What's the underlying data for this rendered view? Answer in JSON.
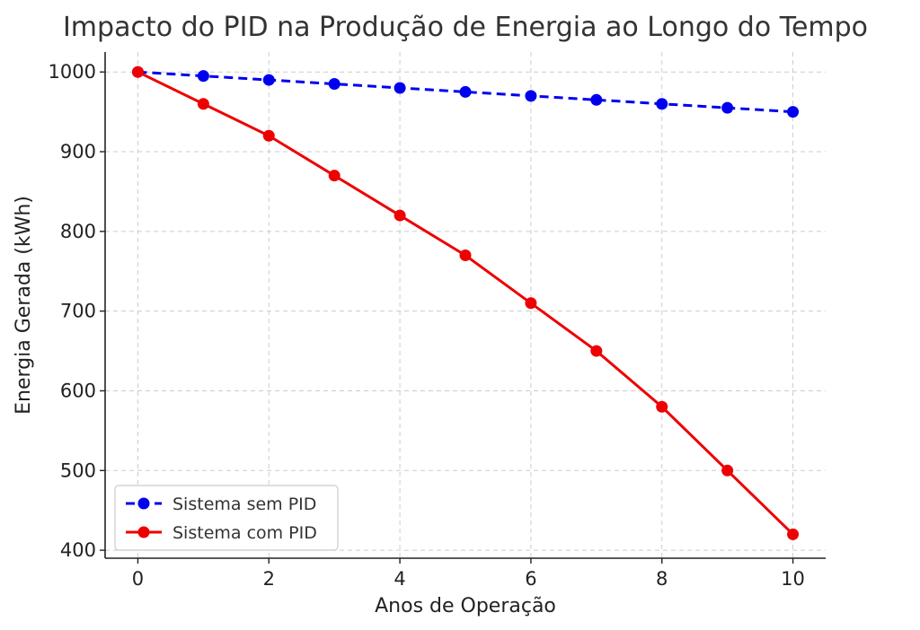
{
  "chart_data": {
    "type": "line",
    "title": "Impacto do PID na Produção de Energia ao Longo do Tempo",
    "xlabel": "Anos de Operação",
    "ylabel": "Energia Gerada (kWh)",
    "x": [
      0,
      1,
      2,
      3,
      4,
      5,
      6,
      7,
      8,
      9,
      10
    ],
    "xlim": [
      -0.5,
      10.5
    ],
    "ylim": [
      390,
      1025
    ],
    "xticks": [
      0,
      2,
      4,
      6,
      8,
      10
    ],
    "yticks": [
      400,
      500,
      600,
      700,
      800,
      900,
      1000
    ],
    "grid": true,
    "legend_position": "lower-left",
    "series": [
      {
        "name": "Sistema sem PID",
        "color": "#0000ee",
        "line_style": "dashed",
        "marker": "circle",
        "values": [
          1000,
          995,
          990,
          985,
          980,
          975,
          970,
          965,
          960,
          955,
          950
        ]
      },
      {
        "name": "Sistema com PID",
        "color": "#ee0000",
        "line_style": "solid",
        "marker": "circle",
        "values": [
          1000,
          960,
          920,
          870,
          820,
          770,
          710,
          650,
          580,
          500,
          420
        ]
      }
    ]
  }
}
